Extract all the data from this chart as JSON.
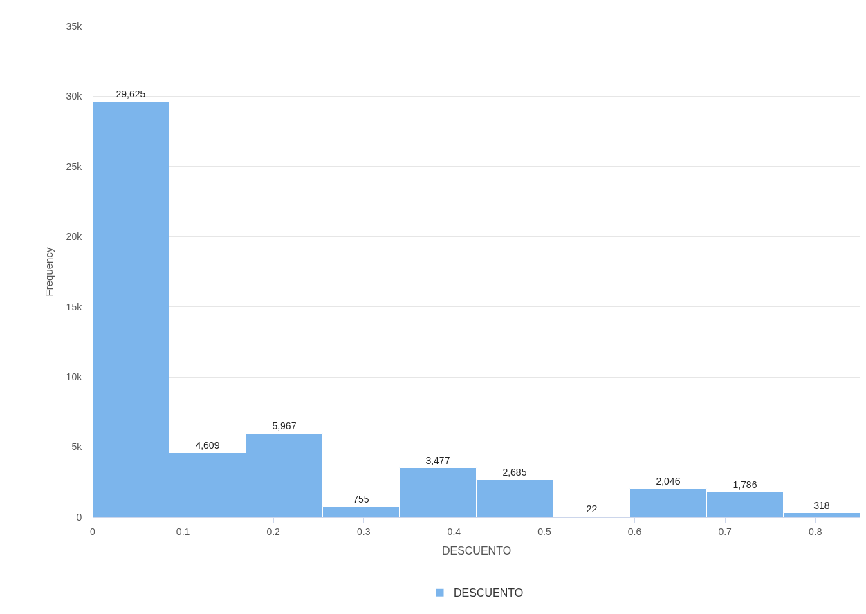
{
  "chart_data": {
    "type": "histogram",
    "bins": [
      0,
      0.085,
      0.17,
      0.255,
      0.34,
      0.425,
      0.51,
      0.595,
      0.68,
      0.765,
      0.85
    ],
    "series": [
      {
        "name": "DESCUENTO",
        "color": "#7cb5ec",
        "values": [
          29625,
          4609,
          5967,
          755,
          3477,
          2685,
          22,
          2046,
          1786,
          318
        ],
        "value_labels": [
          "29,625",
          "4,609",
          "5,967",
          "755",
          "3,477",
          "2,685",
          "22",
          "2,046",
          "1,786",
          "318"
        ]
      }
    ],
    "xlabel": "DESCUENTO",
    "ylabel": "Frequency",
    "xlim": [
      0,
      0.85
    ],
    "xticks": [
      0,
      0.1,
      0.2,
      0.3,
      0.4,
      0.5,
      0.6,
      0.7,
      0.8
    ],
    "ylim": [
      0,
      35000
    ],
    "yticks": [
      {
        "value": 0,
        "label": "0"
      },
      {
        "value": 5000,
        "label": "5k"
      },
      {
        "value": 10000,
        "label": "10k"
      },
      {
        "value": 15000,
        "label": "15k"
      },
      {
        "value": 20000,
        "label": "20k"
      },
      {
        "value": 25000,
        "label": "25k"
      },
      {
        "value": 30000,
        "label": "30k"
      },
      {
        "value": 35000,
        "label": "35k"
      }
    ],
    "grid": "y",
    "legend": "bottom"
  }
}
